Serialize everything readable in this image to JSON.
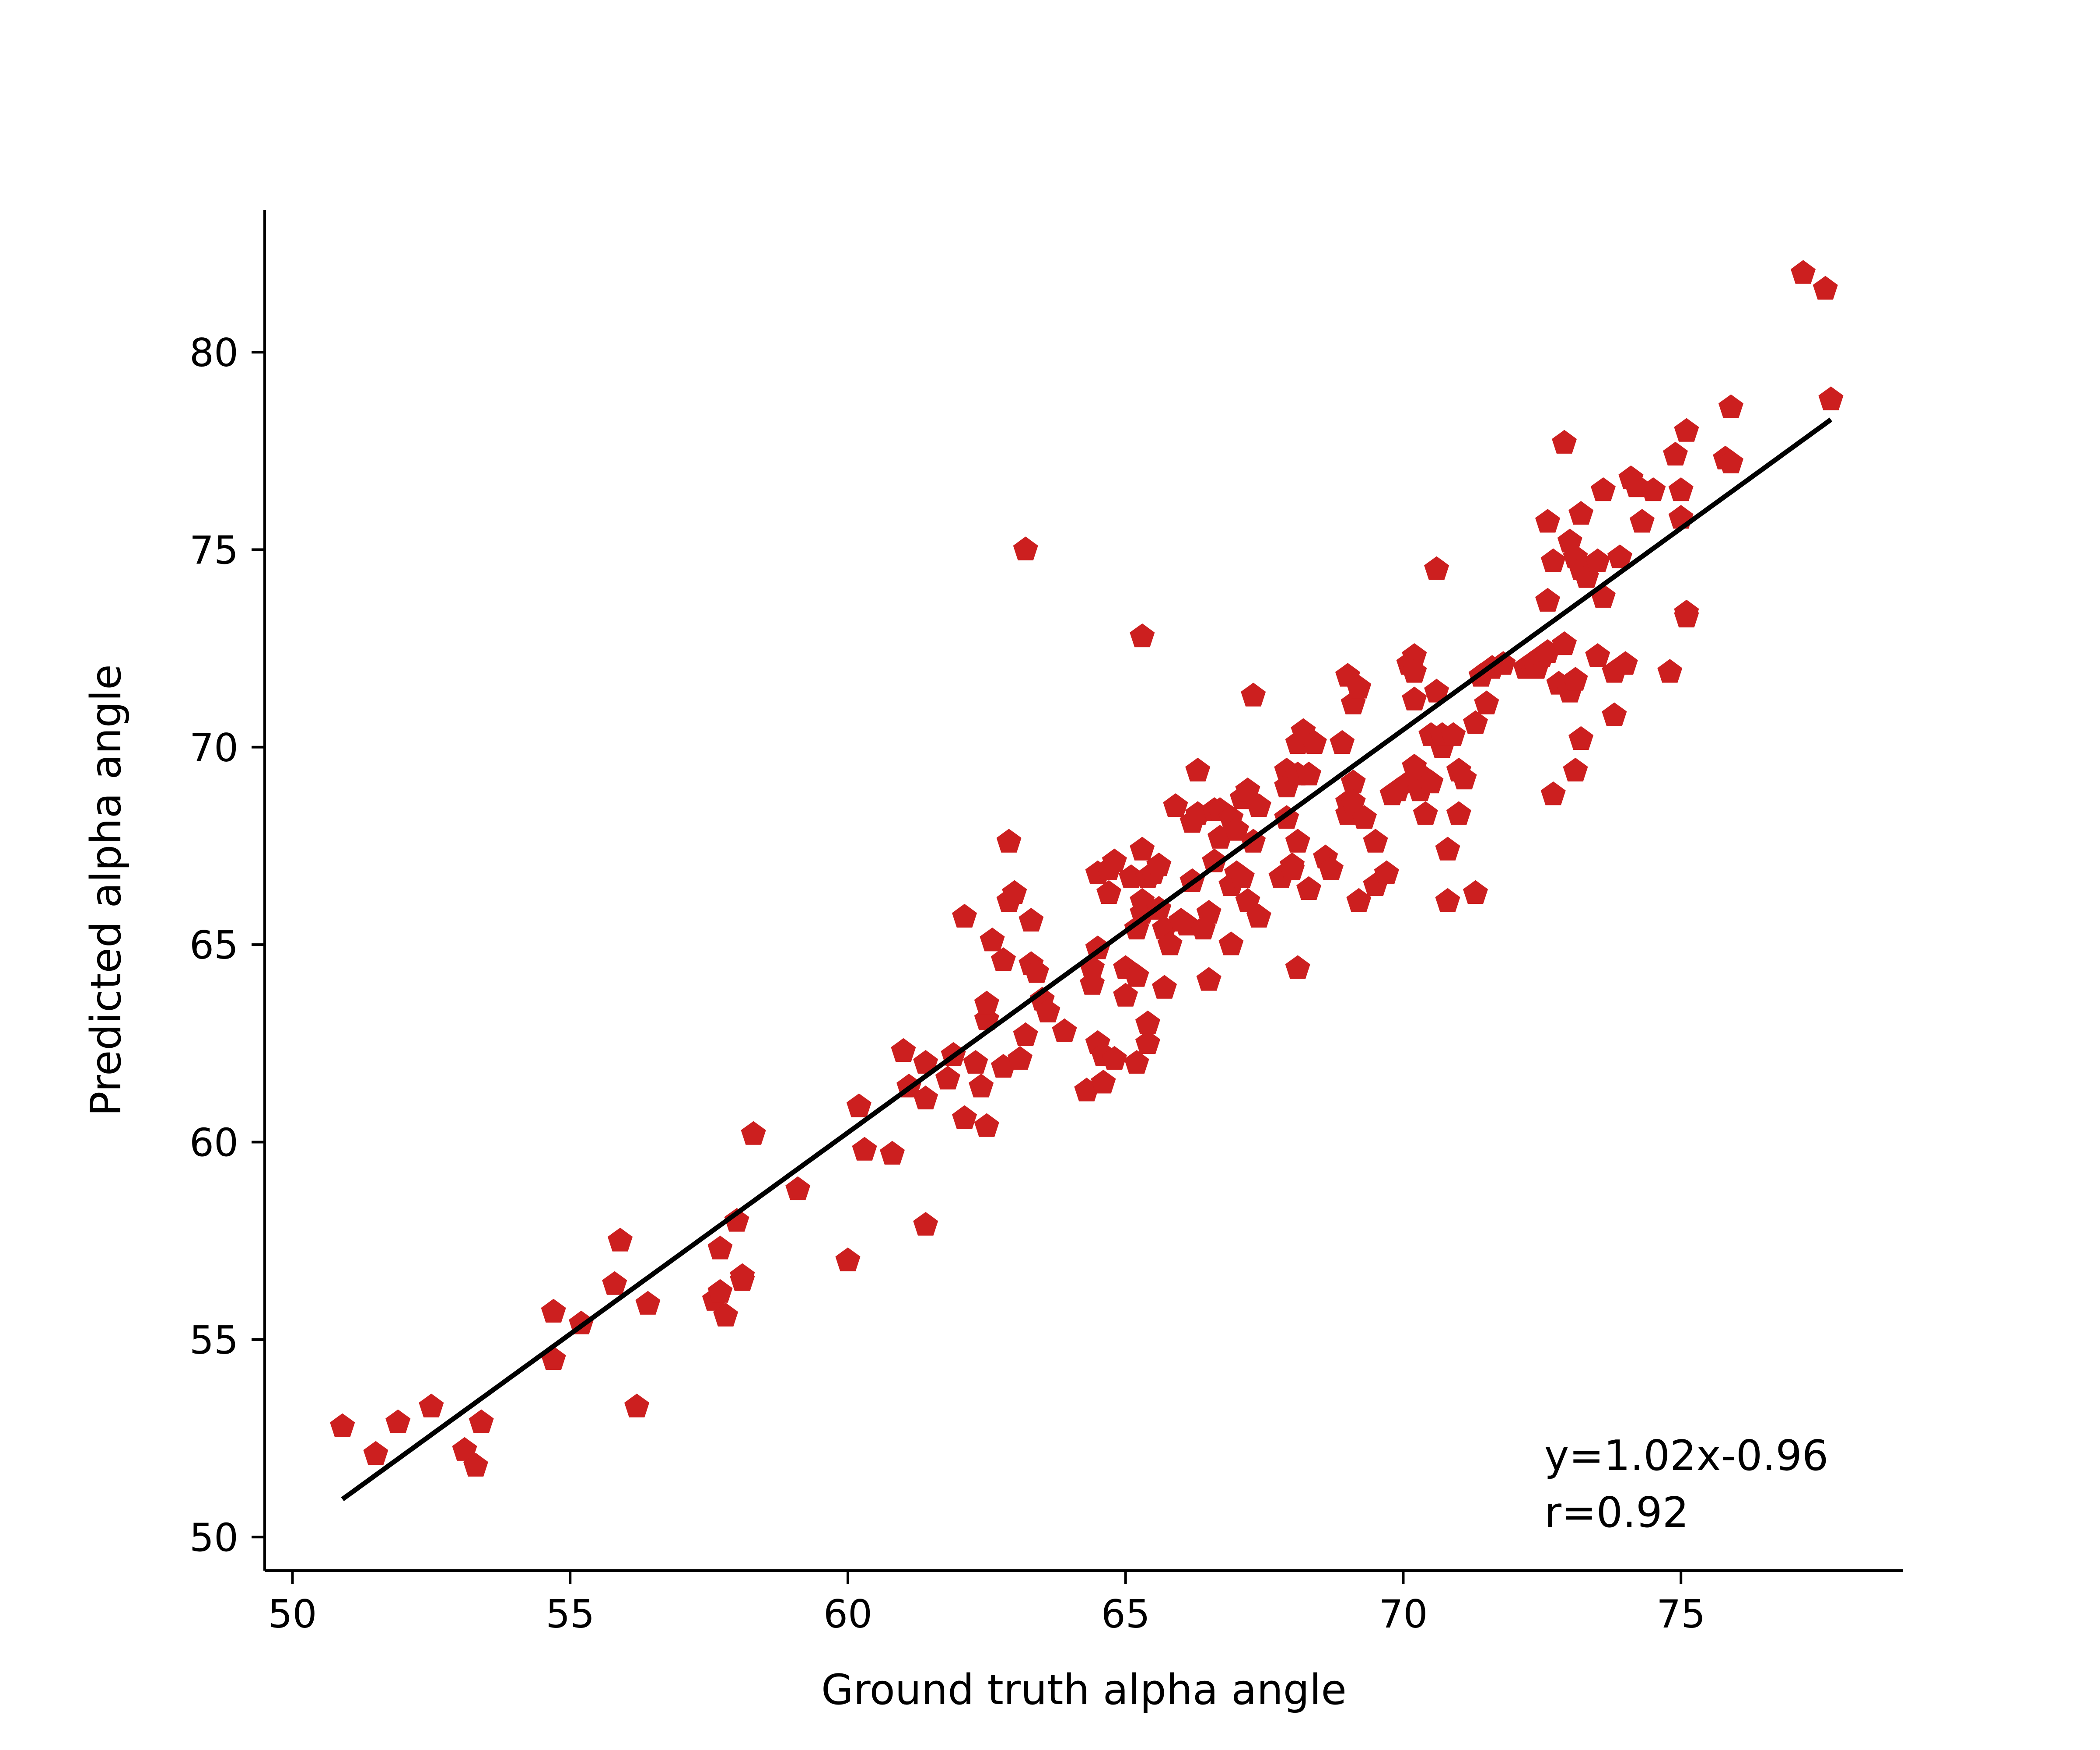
{
  "chart_data": {
    "type": "scatter",
    "xlabel": "Ground truth alpha angle",
    "ylabel": "Predicted alpha angle",
    "xlim": [
      49.5,
      79.0
    ],
    "ylim": [
      49.15,
      83.6
    ],
    "xticks": [
      50,
      55,
      60,
      65,
      70,
      75
    ],
    "yticks": [
      50,
      55,
      60,
      65,
      70,
      75,
      80
    ],
    "grid": false,
    "legend": "none",
    "colors": {
      "points": "#cc1f1f",
      "fit_line": "#000000",
      "axes": "#000000"
    },
    "marker": "pentagon",
    "annotations": [
      "y=1.02x-0.96",
      "r=0.92"
    ],
    "fit_line": {
      "slope": 1.02,
      "intercept": -0.96,
      "x_range": [
        50.9,
        77.7
      ]
    },
    "series": [
      {
        "points": [
          [
            50.9,
            52.8
          ],
          [
            51.5,
            52.1
          ],
          [
            51.9,
            52.9
          ],
          [
            52.5,
            53.3
          ],
          [
            53.1,
            52.2
          ],
          [
            53.3,
            51.8
          ],
          [
            53.4,
            52.9
          ],
          [
            54.7,
            54.5
          ],
          [
            54.7,
            55.7
          ],
          [
            55.2,
            55.4
          ],
          [
            55.8,
            56.4
          ],
          [
            55.9,
            57.5
          ],
          [
            56.2,
            53.3
          ],
          [
            56.4,
            55.9
          ],
          [
            57.6,
            56.0
          ],
          [
            57.7,
            57.3
          ],
          [
            57.7,
            56.2
          ],
          [
            57.8,
            55.6
          ],
          [
            58.0,
            58.0
          ],
          [
            58.1,
            56.5
          ],
          [
            58.1,
            56.6
          ],
          [
            58.3,
            60.2
          ],
          [
            59.1,
            58.8
          ],
          [
            60.0,
            57.0
          ],
          [
            60.2,
            60.9
          ],
          [
            60.3,
            59.8
          ],
          [
            60.8,
            59.7
          ],
          [
            61.0,
            62.3
          ],
          [
            61.1,
            61.4
          ],
          [
            61.4,
            61.1
          ],
          [
            61.4,
            62.0
          ],
          [
            61.4,
            57.9
          ],
          [
            61.8,
            61.6
          ],
          [
            61.9,
            62.2
          ],
          [
            62.1,
            65.7
          ],
          [
            62.1,
            60.6
          ],
          [
            62.3,
            62.0
          ],
          [
            62.4,
            61.4
          ],
          [
            62.5,
            60.4
          ],
          [
            62.5,
            63.1
          ],
          [
            62.5,
            63.5
          ],
          [
            62.6,
            65.1
          ],
          [
            62.8,
            64.6
          ],
          [
            62.8,
            61.9
          ],
          [
            62.9,
            67.6
          ],
          [
            62.9,
            66.1
          ],
          [
            63.0,
            66.3
          ],
          [
            63.1,
            62.1
          ],
          [
            63.2,
            62.7
          ],
          [
            63.2,
            75.0
          ],
          [
            63.3,
            64.5
          ],
          [
            63.3,
            65.6
          ],
          [
            63.4,
            64.3
          ],
          [
            63.5,
            63.6
          ],
          [
            63.6,
            63.3
          ],
          [
            63.9,
            62.8
          ],
          [
            64.3,
            61.3
          ],
          [
            64.4,
            64.0
          ],
          [
            64.4,
            64.4
          ],
          [
            64.5,
            64.9
          ],
          [
            64.5,
            66.8
          ],
          [
            64.5,
            62.5
          ],
          [
            64.6,
            62.2
          ],
          [
            64.6,
            61.5
          ],
          [
            64.7,
            66.3
          ],
          [
            64.7,
            66.9
          ],
          [
            64.8,
            67.1
          ],
          [
            64.8,
            62.1
          ],
          [
            65.0,
            64.4
          ],
          [
            65.0,
            63.7
          ],
          [
            65.1,
            66.7
          ],
          [
            65.2,
            65.4
          ],
          [
            65.2,
            64.2
          ],
          [
            65.2,
            62.0
          ],
          [
            65.3,
            65.8
          ],
          [
            65.3,
            67.4
          ],
          [
            65.3,
            66.1
          ],
          [
            65.3,
            72.8
          ],
          [
            65.4,
            66.7
          ],
          [
            65.4,
            63.0
          ],
          [
            65.4,
            62.5
          ],
          [
            65.5,
            66.8
          ],
          [
            65.6,
            65.9
          ],
          [
            65.6,
            67.0
          ],
          [
            65.7,
            63.9
          ],
          [
            65.7,
            65.4
          ],
          [
            65.8,
            65.0
          ],
          [
            65.9,
            68.5
          ],
          [
            66.0,
            65.6
          ],
          [
            66.1,
            65.5
          ],
          [
            66.2,
            68.1
          ],
          [
            66.2,
            66.6
          ],
          [
            66.3,
            69.4
          ],
          [
            66.3,
            68.3
          ],
          [
            66.4,
            65.4
          ],
          [
            66.5,
            65.8
          ],
          [
            66.5,
            64.1
          ],
          [
            66.6,
            68.4
          ],
          [
            66.6,
            67.1
          ],
          [
            66.7,
            68.4
          ],
          [
            66.7,
            67.7
          ],
          [
            66.9,
            66.5
          ],
          [
            66.9,
            65.0
          ],
          [
            66.9,
            68.2
          ],
          [
            67.0,
            66.8
          ],
          [
            67.0,
            67.9
          ],
          [
            67.1,
            66.7
          ],
          [
            67.1,
            68.7
          ],
          [
            67.2,
            68.9
          ],
          [
            67.2,
            66.1
          ],
          [
            67.3,
            71.3
          ],
          [
            67.3,
            67.6
          ],
          [
            67.4,
            65.7
          ],
          [
            67.4,
            68.5
          ],
          [
            67.8,
            66.7
          ],
          [
            67.9,
            69.4
          ],
          [
            67.9,
            69.0
          ],
          [
            67.9,
            68.2
          ],
          [
            68.0,
            67.0
          ],
          [
            68.0,
            66.9
          ],
          [
            68.1,
            70.1
          ],
          [
            68.1,
            69.3
          ],
          [
            68.1,
            67.6
          ],
          [
            68.1,
            64.4
          ],
          [
            68.2,
            70.4
          ],
          [
            68.3,
            69.3
          ],
          [
            68.3,
            66.4
          ],
          [
            68.4,
            70.1
          ],
          [
            68.6,
            67.2
          ],
          [
            68.7,
            66.9
          ],
          [
            68.9,
            70.1
          ],
          [
            69.0,
            71.8
          ],
          [
            69.0,
            68.6
          ],
          [
            69.0,
            68.3
          ],
          [
            69.1,
            71.1
          ],
          [
            69.1,
            69.1
          ],
          [
            69.1,
            68.6
          ],
          [
            69.2,
            71.5
          ],
          [
            69.2,
            66.1
          ],
          [
            69.3,
            68.2
          ],
          [
            69.5,
            67.6
          ],
          [
            69.5,
            66.5
          ],
          [
            69.7,
            66.8
          ],
          [
            69.8,
            68.8
          ],
          [
            69.9,
            68.9
          ],
          [
            70.1,
            69.1
          ],
          [
            70.1,
            72.1
          ],
          [
            70.2,
            72.3
          ],
          [
            70.2,
            71.9
          ],
          [
            70.2,
            71.2
          ],
          [
            70.2,
            69.5
          ],
          [
            70.3,
            69.3
          ],
          [
            70.3,
            68.9
          ],
          [
            70.4,
            68.3
          ],
          [
            70.5,
            69.1
          ],
          [
            70.5,
            70.3
          ],
          [
            70.6,
            74.5
          ],
          [
            70.6,
            71.4
          ],
          [
            70.7,
            70.0
          ],
          [
            70.7,
            70.3
          ],
          [
            70.8,
            66.1
          ],
          [
            70.8,
            67.4
          ],
          [
            70.9,
            70.3
          ],
          [
            71.0,
            69.4
          ],
          [
            71.0,
            68.3
          ],
          [
            71.1,
            69.2
          ],
          [
            71.3,
            70.6
          ],
          [
            71.3,
            66.3
          ],
          [
            71.4,
            71.8
          ],
          [
            71.5,
            71.1
          ],
          [
            71.6,
            72.0
          ],
          [
            71.8,
            72.1
          ],
          [
            72.2,
            72.0
          ],
          [
            72.3,
            72.1
          ],
          [
            72.4,
            72.0
          ],
          [
            72.5,
            72.3
          ],
          [
            72.6,
            75.7
          ],
          [
            72.6,
            73.7
          ],
          [
            72.6,
            72.4
          ],
          [
            72.7,
            74.7
          ],
          [
            72.7,
            68.8
          ],
          [
            72.8,
            71.6
          ],
          [
            72.9,
            77.7
          ],
          [
            72.9,
            72.6
          ],
          [
            73.0,
            75.2
          ],
          [
            73.0,
            71.4
          ],
          [
            73.1,
            74.8
          ],
          [
            73.1,
            71.7
          ],
          [
            73.1,
            69.4
          ],
          [
            73.2,
            75.9
          ],
          [
            73.2,
            74.5
          ],
          [
            73.2,
            70.2
          ],
          [
            73.3,
            74.3
          ],
          [
            73.5,
            74.7
          ],
          [
            73.5,
            72.3
          ],
          [
            73.6,
            76.5
          ],
          [
            73.6,
            73.8
          ],
          [
            73.8,
            71.9
          ],
          [
            73.8,
            70.8
          ],
          [
            73.9,
            74.8
          ],
          [
            74.0,
            72.1
          ],
          [
            74.1,
            76.8
          ],
          [
            74.2,
            76.6
          ],
          [
            74.3,
            75.7
          ],
          [
            74.5,
            76.5
          ],
          [
            74.8,
            71.9
          ],
          [
            74.9,
            77.4
          ],
          [
            75.0,
            76.5
          ],
          [
            75.0,
            75.8
          ],
          [
            75.1,
            78.0
          ],
          [
            75.1,
            73.4
          ],
          [
            75.1,
            73.3
          ],
          [
            75.8,
            77.3
          ],
          [
            75.9,
            77.2
          ],
          [
            75.9,
            78.6
          ],
          [
            77.2,
            82.0
          ],
          [
            77.6,
            81.6
          ],
          [
            77.7,
            78.8
          ]
        ]
      }
    ]
  }
}
